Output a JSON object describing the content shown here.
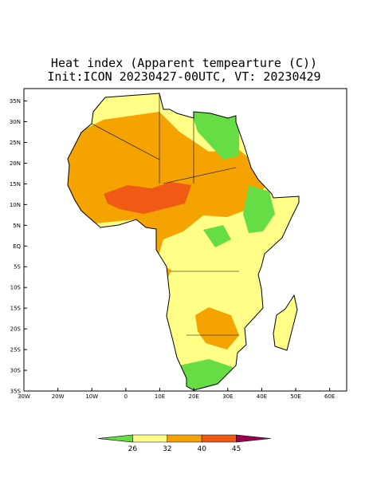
{
  "title": "Heat index (Apparent tempearture (C))",
  "subtitle": "Init:ICON 20230427-00UTC, VT: 20230429",
  "lonlim": [
    -30,
    65
  ],
  "latlim": [
    -35,
    38
  ],
  "lat_ticks": [
    {
      "value": 35,
      "label": "35N"
    },
    {
      "value": 30,
      "label": "30N"
    },
    {
      "value": 25,
      "label": "25N"
    },
    {
      "value": 20,
      "label": "20N"
    },
    {
      "value": 15,
      "label": "15N"
    },
    {
      "value": 10,
      "label": "10N"
    },
    {
      "value": 5,
      "label": "5N"
    },
    {
      "value": 0,
      "label": "EQ"
    },
    {
      "value": -5,
      "label": "5S"
    },
    {
      "value": -10,
      "label": "10S"
    },
    {
      "value": -15,
      "label": "15S"
    },
    {
      "value": -20,
      "label": "20S"
    },
    {
      "value": -25,
      "label": "25S"
    },
    {
      "value": -30,
      "label": "30S"
    },
    {
      "value": -35,
      "label": "35S"
    }
  ],
  "lon_ticks": [
    {
      "value": -30,
      "label": "30W"
    },
    {
      "value": -20,
      "label": "20W"
    },
    {
      "value": -10,
      "label": "10W"
    },
    0,
    {
      "value": 10,
      "label": "10E"
    },
    {
      "value": 20,
      "label": "20E"
    },
    {
      "value": 30,
      "label": "30E"
    },
    {
      "value": 40,
      "label": "40E"
    },
    {
      "value": 50,
      "label": "50E"
    },
    {
      "value": 60,
      "label": "60E"
    }
  ],
  "colorbar": {
    "colors": [
      "#66dd44",
      "#ffff88",
      "#f5a300",
      "#f05a14",
      "#9a0050"
    ],
    "levels": [
      26,
      32,
      40,
      45
    ]
  }
}
